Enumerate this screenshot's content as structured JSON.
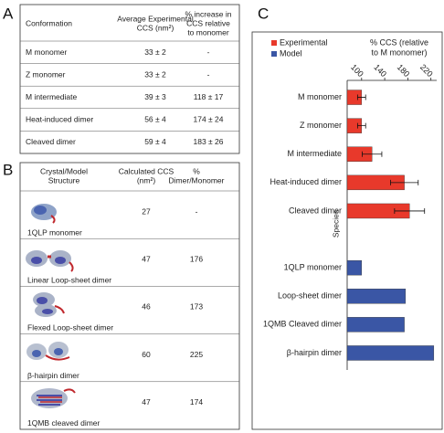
{
  "panel_labels": [
    "A",
    "B",
    "C"
  ],
  "table_a": {
    "headers": [
      [
        "Conformation"
      ],
      [
        "Average Experimental",
        "CCS (nm²)"
      ],
      [
        "% increase in",
        "CCS relative",
        "to monomer"
      ]
    ],
    "rows": [
      [
        "M monomer",
        "33 ± 2",
        "-"
      ],
      [
        "Z monomer",
        "33 ± 2",
        "-"
      ],
      [
        "M intermediate",
        "39 ± 3",
        "118 ± 17"
      ],
      [
        "Heat-induced dimer",
        "56 ± 4",
        "174 ± 24"
      ],
      [
        "Cleaved dimer",
        "59 ± 4",
        "183 ± 26"
      ]
    ]
  },
  "table_b": {
    "headers": [
      [
        "Crystal/Model",
        "Structure"
      ],
      [
        "Calculated CCS",
        "(nm²)"
      ],
      [
        "%",
        "Dimer/Monomer"
      ]
    ],
    "rows": [
      [
        "1QLP monomer",
        "27",
        "-"
      ],
      [
        "Linear Loop-sheet dimer",
        "47",
        "176"
      ],
      [
        "Flexed Loop-sheet dimer",
        "46",
        "173"
      ],
      [
        "β-hairpin dimer",
        "60",
        "225"
      ],
      [
        "1QMB cleaved dimer",
        "47",
        "174"
      ]
    ]
  },
  "chart_data": {
    "type": "barh",
    "x_label": [
      "% CCS (relative",
      "to M monomer)"
    ],
    "y_label": "Species",
    "categories": [
      "M monomer",
      "Z monomer",
      "M intermediate",
      "Heat-induced dimer",
      "Cleaved dimer",
      null,
      "1QLP monomer",
      "Loop-sheet dimer",
      "1QMB Cleaved dimer",
      "β-hairpin dimer"
    ],
    "series": [
      {
        "name": "Experimental",
        "color": "#e8392b",
        "values": [
          100,
          100,
          118,
          174,
          183,
          null,
          null,
          null,
          null,
          null
        ],
        "errors": [
          7,
          7,
          17,
          24,
          26,
          null,
          null,
          null,
          null,
          null
        ]
      },
      {
        "name": "Model",
        "color": "#3a56a5",
        "values": [
          null,
          null,
          null,
          null,
          null,
          null,
          100,
          176,
          174,
          225
        ]
      }
    ],
    "xlim": [
      75,
      230
    ],
    "xticks": [
      100,
      140,
      180,
      220
    ],
    "legend": "top-left"
  }
}
